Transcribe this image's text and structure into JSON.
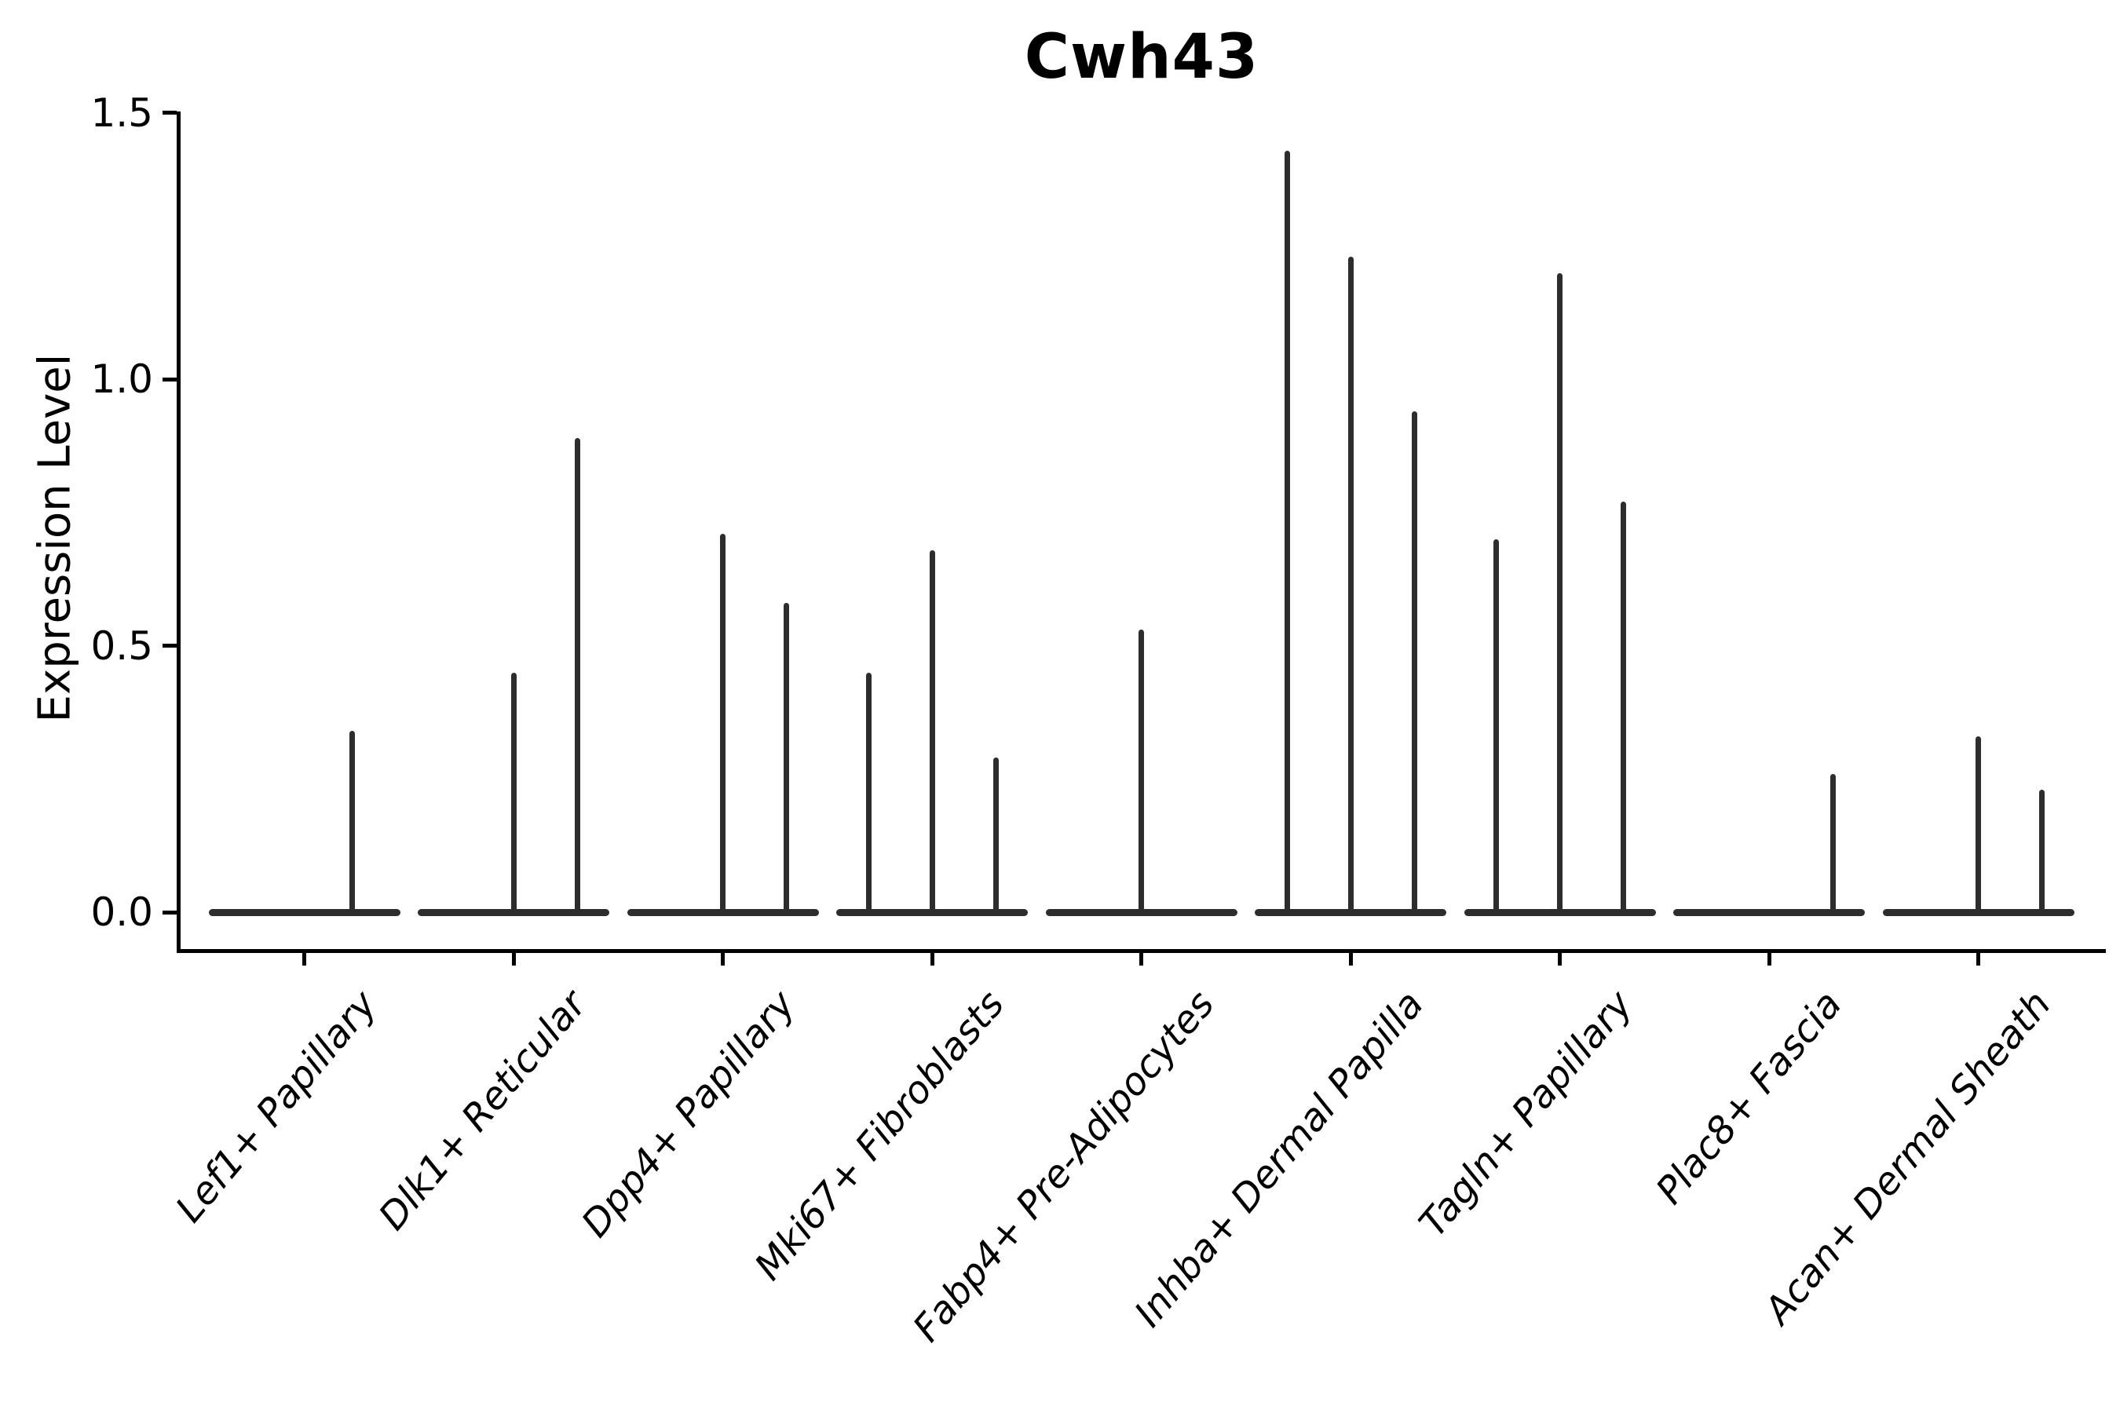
{
  "title": "Cwh43",
  "axes": {
    "ylabel": "Expression Level",
    "ytick_labels": [
      "0.0",
      "0.5",
      "1.0",
      "1.5"
    ],
    "ylim": [
      0.0,
      1.5
    ]
  },
  "colors": {
    "background": "#ffffff",
    "violin": "#2d2d2d",
    "axis": "#000000",
    "text": "#000000"
  },
  "chart_data": {
    "type": "violin",
    "title": "Cwh43",
    "xlabel": "",
    "ylabel": "Expression Level",
    "ylim": [
      0.0,
      1.5
    ],
    "yticks": [
      0.0,
      0.5,
      1.0,
      1.5
    ],
    "grid": false,
    "legend": false,
    "description": "Violin plot of Cwh43 expression per fibroblast cluster; violins collapse to a flat baseline at 0 with thin spikes up to the maximum expression of rare expressing cells. Each category holds up to three sub-violins (slot = pixel offset of the sub-violin center from the category center; value = spike maximum expression).",
    "categories": [
      "Lef1+ Papillary",
      "Dlk1+ Reticular",
      "Dpp4+ Papillary",
      "Mki67+ Fibroblasts",
      "Fabp4+ Pre-Adipocytes",
      "Inhba+ Dermal Papilla",
      "Tagln+ Papillary",
      "Plac8+ Fascia",
      "Acan+ Dermal Sheath"
    ],
    "series": [
      {
        "name": "Lef1+ Papillary",
        "spikes": [
          {
            "slot": 61,
            "value": 0.34
          }
        ]
      },
      {
        "name": "Dlk1+ Reticular",
        "spikes": [
          {
            "slot": 0,
            "value": 0.45
          },
          {
            "slot": 81,
            "value": 0.89
          }
        ]
      },
      {
        "name": "Dpp4+ Papillary",
        "spikes": [
          {
            "slot": 0,
            "value": 0.71
          },
          {
            "slot": 81,
            "value": 0.58
          }
        ]
      },
      {
        "name": "Mki67+ Fibroblasts",
        "spikes": [
          {
            "slot": -81,
            "value": 0.45
          },
          {
            "slot": 0,
            "value": 0.68
          },
          {
            "slot": 81,
            "value": 0.29
          }
        ]
      },
      {
        "name": "Fabp4+ Pre-Adipocytes",
        "spikes": [
          {
            "slot": 0,
            "value": 0.53
          }
        ]
      },
      {
        "name": "Inhba+ Dermal Papilla",
        "spikes": [
          {
            "slot": -81,
            "value": 1.43
          },
          {
            "slot": 0,
            "value": 1.23
          },
          {
            "slot": 81,
            "value": 0.94
          }
        ]
      },
      {
        "name": "Tagln+ Papillary",
        "spikes": [
          {
            "slot": -81,
            "value": 0.7
          },
          {
            "slot": 0,
            "value": 1.2
          },
          {
            "slot": 81,
            "value": 0.77
          }
        ]
      },
      {
        "name": "Plac8+ Fascia",
        "spikes": [
          {
            "slot": 81,
            "value": 0.26
          }
        ]
      },
      {
        "name": "Acan+ Dermal Sheath",
        "spikes": [
          {
            "slot": 0,
            "value": 0.33
          },
          {
            "slot": 81,
            "value": 0.23
          }
        ]
      }
    ]
  }
}
